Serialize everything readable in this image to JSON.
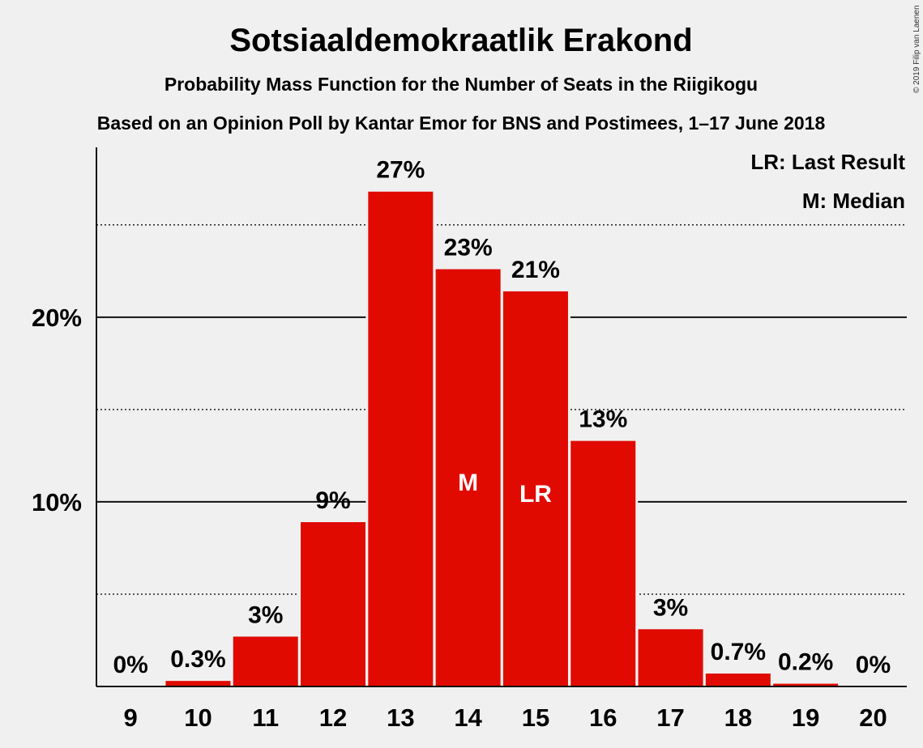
{
  "chart_data": {
    "type": "bar",
    "title": "Sotsiaaldemokraatlik Erakond",
    "subtitle_1": "Probability Mass Function for the Number of Seats in the Riigikogu",
    "subtitle_2": "Based on an Opinion Poll by Kantar Emor for BNS and Postimees, 1–17 June 2018",
    "categories": [
      "9",
      "10",
      "11",
      "12",
      "13",
      "14",
      "15",
      "16",
      "17",
      "18",
      "19",
      "20"
    ],
    "values": [
      0,
      0.3,
      2.7,
      8.9,
      26.8,
      22.6,
      21.4,
      13.3,
      3.1,
      0.7,
      0.15,
      0
    ],
    "data_labels": [
      "0%",
      "0.3%",
      "3%",
      "9%",
      "27%",
      "23%",
      "21%",
      "13%",
      "3%",
      "0.7%",
      "0.2%",
      "0%"
    ],
    "bar_markers": {
      "14": "M",
      "15": "LR"
    },
    "ylim": [
      0,
      29.2
    ],
    "yticks": [
      {
        "value": 10,
        "label": "10%"
      },
      {
        "value": 20,
        "label": "20%"
      }
    ],
    "minor_gridlines": [
      5,
      15,
      25
    ],
    "legend": [
      "LR: Last Result",
      "M: Median"
    ],
    "legend_position": "top-right",
    "bar_color": "#e00a00",
    "copyright": "© 2019 Filip van Laenen"
  }
}
